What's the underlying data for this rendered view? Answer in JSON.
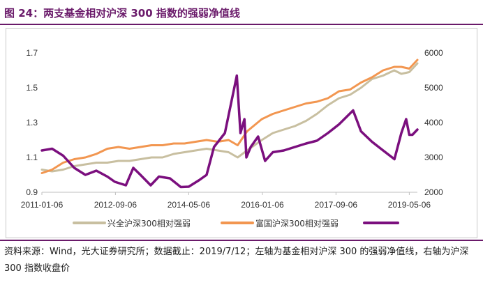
{
  "figure": {
    "title": "图 24：两支基金相对沪深 300 指数的强弱净值线",
    "footer": "资料来源：Wind，光大证券研究所；数据截止：2019/7/12；左轴为基金相对沪深 300 的强弱净值线，右轴为沪深 300 指数收盘价"
  },
  "chart_data": {
    "type": "line",
    "title": "",
    "xlabel": "",
    "ylabel": "",
    "x_ticks": [
      "2011-01-06",
      "2012-09-06",
      "2014-05-06",
      "2016-01-06",
      "2017-09-06",
      "2019-05-06"
    ],
    "y_left": {
      "range": [
        0.9,
        1.7
      ],
      "ticks": [
        "0.9",
        "1.1",
        "1.3",
        "1.5",
        "1.7"
      ]
    },
    "y_right": {
      "range": [
        2000,
        6000
      ],
      "ticks": [
        "2000",
        "3000",
        "4000",
        "5000",
        "6000"
      ]
    },
    "grid": false,
    "legend_position": "bottom",
    "series": [
      {
        "name": "兴全沪深300相对强弱",
        "axis": "left",
        "color": "#c8bfa0",
        "points": [
          [
            "2011-01-06",
            1.03
          ],
          [
            "2011-04-01",
            1.02
          ],
          [
            "2011-07-01",
            1.03
          ],
          [
            "2011-10-01",
            1.05
          ],
          [
            "2012-01-01",
            1.06
          ],
          [
            "2012-04-01",
            1.07
          ],
          [
            "2012-07-01",
            1.07
          ],
          [
            "2012-10-01",
            1.08
          ],
          [
            "2013-01-01",
            1.08
          ],
          [
            "2013-04-01",
            1.09
          ],
          [
            "2013-07-01",
            1.1
          ],
          [
            "2013-10-01",
            1.1
          ],
          [
            "2014-01-01",
            1.12
          ],
          [
            "2014-04-01",
            1.13
          ],
          [
            "2014-07-01",
            1.14
          ],
          [
            "2014-10-01",
            1.15
          ],
          [
            "2015-01-01",
            1.14
          ],
          [
            "2015-04-01",
            1.13
          ],
          [
            "2015-06-15",
            1.1
          ],
          [
            "2015-09-01",
            1.14
          ],
          [
            "2016-01-01",
            1.2
          ],
          [
            "2016-04-01",
            1.24
          ],
          [
            "2016-07-01",
            1.26
          ],
          [
            "2016-10-01",
            1.28
          ],
          [
            "2017-01-01",
            1.31
          ],
          [
            "2017-04-01",
            1.35
          ],
          [
            "2017-07-01",
            1.4
          ],
          [
            "2017-10-01",
            1.44
          ],
          [
            "2018-01-01",
            1.46
          ],
          [
            "2018-04-01",
            1.5
          ],
          [
            "2018-07-01",
            1.55
          ],
          [
            "2018-10-01",
            1.57
          ],
          [
            "2019-01-01",
            1.6
          ],
          [
            "2019-03-01",
            1.58
          ],
          [
            "2019-05-06",
            1.59
          ],
          [
            "2019-07-12",
            1.64
          ]
        ]
      },
      {
        "name": "富国沪深300相对强弱",
        "axis": "left",
        "color": "#f29650",
        "points": [
          [
            "2011-01-06",
            1.01
          ],
          [
            "2011-04-01",
            1.03
          ],
          [
            "2011-07-01",
            1.07
          ],
          [
            "2011-10-01",
            1.09
          ],
          [
            "2012-01-01",
            1.1
          ],
          [
            "2012-04-01",
            1.12
          ],
          [
            "2012-07-01",
            1.15
          ],
          [
            "2012-10-01",
            1.16
          ],
          [
            "2013-01-01",
            1.15
          ],
          [
            "2013-04-01",
            1.16
          ],
          [
            "2013-07-01",
            1.17
          ],
          [
            "2013-10-01",
            1.17
          ],
          [
            "2014-01-01",
            1.18
          ],
          [
            "2014-04-01",
            1.18
          ],
          [
            "2014-07-01",
            1.19
          ],
          [
            "2014-10-01",
            1.2
          ],
          [
            "2015-01-01",
            1.19
          ],
          [
            "2015-04-01",
            1.2
          ],
          [
            "2015-06-15",
            1.17
          ],
          [
            "2015-09-01",
            1.25
          ],
          [
            "2016-01-01",
            1.32
          ],
          [
            "2016-04-01",
            1.35
          ],
          [
            "2016-07-01",
            1.37
          ],
          [
            "2016-10-01",
            1.39
          ],
          [
            "2017-01-01",
            1.41
          ],
          [
            "2017-04-01",
            1.42
          ],
          [
            "2017-07-01",
            1.44
          ],
          [
            "2017-10-01",
            1.48
          ],
          [
            "2018-01-01",
            1.49
          ],
          [
            "2018-04-01",
            1.53
          ],
          [
            "2018-07-01",
            1.56
          ],
          [
            "2018-10-01",
            1.6
          ],
          [
            "2019-01-01",
            1.62
          ],
          [
            "2019-03-01",
            1.62
          ],
          [
            "2019-05-06",
            1.61
          ],
          [
            "2019-07-12",
            1.66
          ]
        ]
      },
      {
        "name": "",
        "axis": "right",
        "color": "#7b0f7e",
        "points": [
          [
            "2011-01-06",
            3200
          ],
          [
            "2011-04-01",
            3250
          ],
          [
            "2011-07-01",
            3050
          ],
          [
            "2011-10-01",
            2700
          ],
          [
            "2012-01-01",
            2500
          ],
          [
            "2012-04-01",
            2620
          ],
          [
            "2012-07-01",
            2450
          ],
          [
            "2012-09-01",
            2300
          ],
          [
            "2012-12-01",
            2200
          ],
          [
            "2013-02-01",
            2700
          ],
          [
            "2013-04-01",
            2500
          ],
          [
            "2013-06-25",
            2200
          ],
          [
            "2013-09-01",
            2450
          ],
          [
            "2013-12-01",
            2400
          ],
          [
            "2014-03-01",
            2150
          ],
          [
            "2014-05-06",
            2160
          ],
          [
            "2014-08-01",
            2350
          ],
          [
            "2014-10-01",
            2500
          ],
          [
            "2014-12-01",
            3300
          ],
          [
            "2015-03-01",
            3700
          ],
          [
            "2015-06-08",
            5350
          ],
          [
            "2015-07-08",
            3700
          ],
          [
            "2015-08-10",
            4100
          ],
          [
            "2015-08-26",
            3000
          ],
          [
            "2015-10-01",
            3300
          ],
          [
            "2015-12-01",
            3600
          ],
          [
            "2016-01-28",
            2900
          ],
          [
            "2016-04-01",
            3150
          ],
          [
            "2016-07-01",
            3200
          ],
          [
            "2016-10-01",
            3300
          ],
          [
            "2017-01-01",
            3400
          ],
          [
            "2017-04-01",
            3480
          ],
          [
            "2017-07-01",
            3700
          ],
          [
            "2017-10-01",
            3950
          ],
          [
            "2018-01-26",
            4350
          ],
          [
            "2018-04-01",
            3750
          ],
          [
            "2018-07-01",
            3450
          ],
          [
            "2018-10-01",
            3200
          ],
          [
            "2019-01-03",
            2950
          ],
          [
            "2019-03-01",
            3700
          ],
          [
            "2019-04-10",
            4100
          ],
          [
            "2019-05-06",
            3650
          ],
          [
            "2019-06-01",
            3650
          ],
          [
            "2019-07-12",
            3800
          ]
        ]
      }
    ]
  },
  "colors": {
    "title": "#6a1a6a",
    "rule": "#6a1a6a"
  }
}
